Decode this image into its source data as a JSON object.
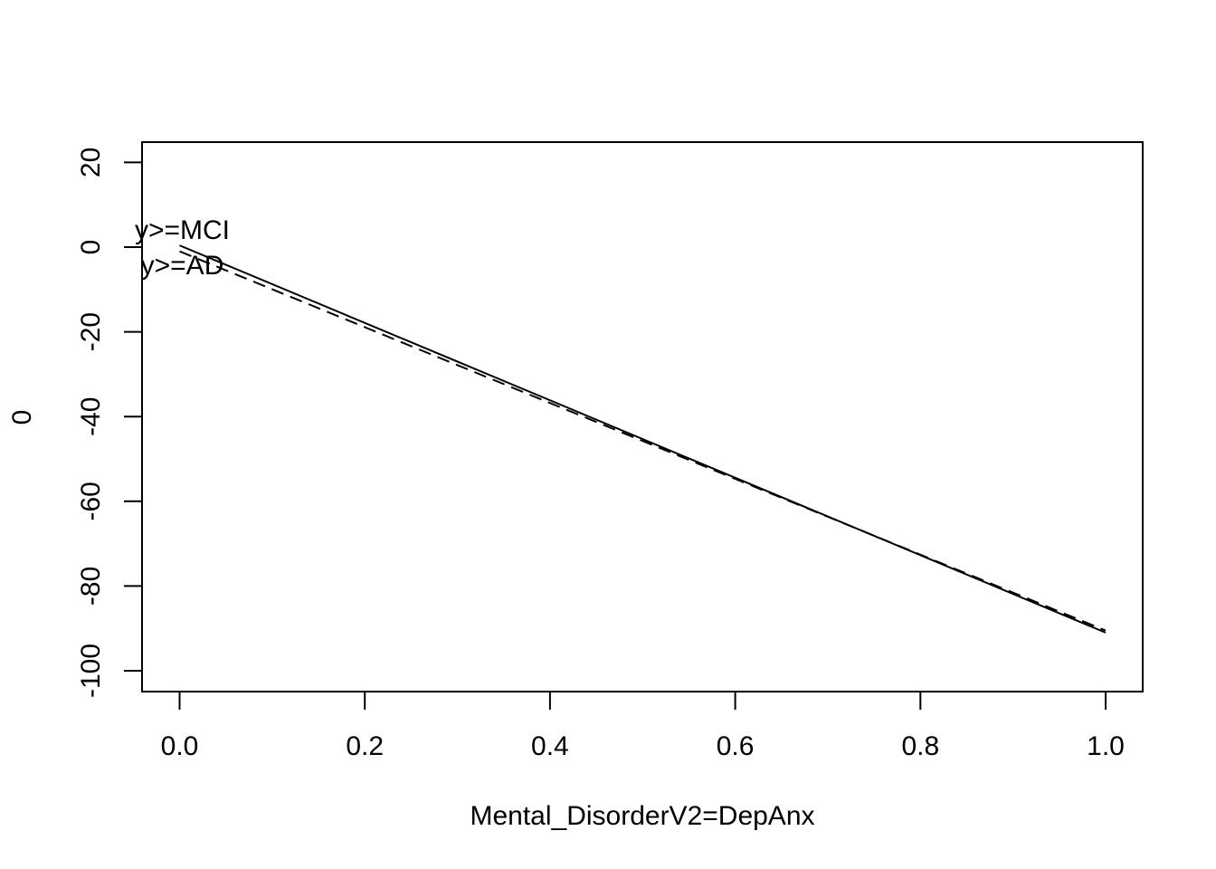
{
  "chart_data": {
    "type": "line",
    "title": "",
    "xlabel": "Mental_DisorderV2=DepAnx",
    "ylabel": "0",
    "xlim": [
      -0.04,
      1.04
    ],
    "ylim": [
      -105,
      25
    ],
    "x_ticks": [
      0.0,
      0.2,
      0.4,
      0.6,
      0.8,
      1.0
    ],
    "x_tick_labels": [
      "0.0",
      "0.2",
      "0.4",
      "0.6",
      "0.8",
      "1.0"
    ],
    "y_ticks": [
      20,
      0,
      -20,
      -40,
      -60,
      -80,
      -100
    ],
    "y_tick_labels": [
      "20",
      "0",
      "-20",
      "-40",
      "-60",
      "-80",
      "-100"
    ],
    "grid": false,
    "legend": "none",
    "series": [
      {
        "name": "y>=MCI",
        "line_style": "solid",
        "color": "#000000",
        "x": [
          0,
          1
        ],
        "y": [
          0.4,
          -91.0
        ]
      },
      {
        "name": "y>=AD",
        "line_style": "dashed",
        "color": "#000000",
        "x": [
          0,
          1
        ],
        "y": [
          -1.0,
          -90.5
        ]
      }
    ]
  }
}
